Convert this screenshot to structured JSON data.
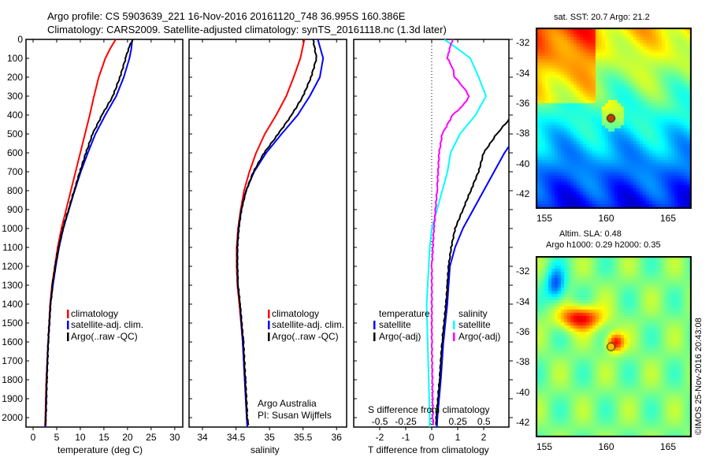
{
  "title_line1": "Argo profile: CS 5903639_221 16-Nov-2016 20161120_748 36.995S 160.386E",
  "title_line2": "Climatology: CARS2009. Satellite-adjusted climatology: synTS_20161118.nc (1.3d later)",
  "colors": {
    "clim": "#ff0000",
    "sat": "#0000ff",
    "argo": "#000000",
    "sat_s": "#00ffff",
    "argo_s": "#ff00ff"
  },
  "map1": {
    "title": "sat. SST: 20.7 Argo: 21.2",
    "lat_ticks": [
      "-32",
      "-34",
      "-36",
      "-38",
      "-40",
      "-42"
    ],
    "lon_ticks": [
      "155",
      "160",
      "165"
    ],
    "argo_lon": 160.386,
    "argo_lat": -36.995
  },
  "map2": {
    "title1": "Altim. SLA: 0.48",
    "title2": "Argo h1000: 0.29 h2000: 0.35",
    "lat_ticks": [
      "-32",
      "-34",
      "-36",
      "-38",
      "-40",
      "-42"
    ],
    "lon_ticks": [
      "155",
      "160",
      "165"
    ]
  },
  "credit": "©IMOS 25-Nov-2016 20:43:08",
  "chart_data": [
    {
      "type": "line",
      "xlabel": "temperature (deg C)",
      "ylabel": "depth",
      "xlim": [
        -1.5,
        31.7
      ],
      "ylim": [
        2050,
        0
      ],
      "xticks": [
        "0",
        "5",
        "10",
        "15",
        "20",
        "25",
        "30"
      ],
      "yticks": [
        "0",
        "100",
        "200",
        "300",
        "400",
        "500",
        "600",
        "700",
        "800",
        "900",
        "1000",
        "1100",
        "1200",
        "1300",
        "1400",
        "1500",
        "1600",
        "1700",
        "1800",
        "1900",
        "2000"
      ],
      "legend": [
        "climatology",
        "satellite-adj. clim.",
        "Argo(..raw -QC)"
      ],
      "series": [
        {
          "name": "climatology",
          "color": "#ff0000",
          "depth": [
            0,
            50,
            100,
            200,
            300,
            400,
            500,
            600,
            700,
            800,
            900,
            1000,
            1100,
            1200,
            1300,
            1400,
            1600,
            1800,
            2000,
            2050
          ],
          "values": [
            17.5,
            16.3,
            15.3,
            13.9,
            12.9,
            12,
            11,
            10,
            9,
            8,
            7,
            6,
            5.2,
            4.6,
            4,
            3.6,
            3.2,
            2.8,
            2.6,
            2.5
          ]
        },
        {
          "name": "satellite-adj. clim.",
          "color": "#0000ff",
          "depth": [
            0,
            50,
            100,
            200,
            300,
            400,
            500,
            600,
            700,
            800,
            900,
            1000,
            1100,
            1200,
            1300,
            1400,
            1600,
            1800,
            2000,
            2050
          ],
          "values": [
            21,
            20.8,
            20.4,
            19.2,
            17.6,
            15.3,
            13.2,
            11.6,
            10.1,
            8.8,
            7.6,
            6.4,
            5.5,
            4.8,
            4.2,
            3.7,
            3.2,
            2.9,
            2.7,
            2.6
          ]
        },
        {
          "name": "Argo(..raw -QC)",
          "color": "#000000",
          "depth": [
            0,
            50,
            100,
            200,
            300,
            400,
            500,
            600,
            700,
            800,
            900,
            1000,
            1100,
            1200,
            1300,
            1400,
            1600,
            1800,
            2000,
            2040
          ],
          "values": [
            21.1,
            20.2,
            19.6,
            18.4,
            16.9,
            14.6,
            12.6,
            11.2,
            9.9,
            8.7,
            7.5,
            6.3,
            5.4,
            4.7,
            4.1,
            3.7,
            3.2,
            2.9,
            2.7,
            2.6
          ]
        }
      ]
    },
    {
      "type": "line",
      "xlabel": "salinity",
      "xlim": [
        33.8,
        36.15
      ],
      "ylim": [
        2050,
        0
      ],
      "xticks": [
        "34",
        "34.5",
        "35",
        "35.5",
        "36"
      ],
      "legend": [
        "climatology",
        "satellite-adj. clim.",
        "Argo(..raw -QC)"
      ],
      "annotation": [
        "Argo Australia",
        "PI: Susan Wijffels"
      ],
      "series": [
        {
          "name": "climatology",
          "color": "#ff0000",
          "depth": [
            0,
            100,
            200,
            300,
            400,
            500,
            600,
            700,
            800,
            900,
            1000,
            1100,
            1200,
            1300,
            1400,
            1600,
            1800,
            2000,
            2050
          ],
          "values": [
            35.52,
            35.46,
            35.36,
            35.25,
            35.1,
            34.93,
            34.8,
            34.7,
            34.62,
            34.57,
            34.53,
            34.51,
            34.51,
            34.52,
            34.55,
            34.6,
            34.63,
            34.66,
            34.67
          ]
        },
        {
          "name": "satellite-adj. clim.",
          "color": "#0000ff",
          "depth": [
            0,
            100,
            200,
            300,
            400,
            500,
            600,
            700,
            800,
            900,
            1000,
            1100,
            1200,
            1300,
            1400,
            1600,
            1800,
            2000,
            2050
          ],
          "values": [
            35.72,
            35.8,
            35.75,
            35.6,
            35.42,
            35.18,
            34.95,
            34.77,
            34.65,
            34.58,
            34.54,
            34.52,
            34.52,
            34.53,
            34.56,
            34.6,
            34.63,
            34.66,
            34.67
          ]
        },
        {
          "name": "Argo(..raw -QC)",
          "color": "#000000",
          "depth": [
            0,
            100,
            200,
            300,
            400,
            500,
            600,
            700,
            800,
            900,
            1000,
            1100,
            1200,
            1300,
            1400,
            1600,
            1800,
            2000,
            2040
          ],
          "values": [
            35.65,
            35.7,
            35.62,
            35.5,
            35.33,
            35.13,
            34.92,
            34.76,
            34.65,
            34.58,
            34.54,
            34.52,
            34.52,
            34.53,
            34.56,
            34.61,
            34.64,
            34.67,
            34.68
          ]
        }
      ]
    },
    {
      "type": "line",
      "xlabel": "T difference from climatology",
      "x2label": "S difference from climatology",
      "xlim": [
        -3,
        2.97
      ],
      "x2lim": [
        -0.75,
        0.74
      ],
      "ylim": [
        2050,
        0
      ],
      "xticks": [
        "-2",
        "-1",
        "0",
        "1",
        "2"
      ],
      "x2ticks": [
        "-0.5",
        "-0.25",
        "0",
        "0.25",
        "0.5"
      ],
      "legend_t_title": "temperature",
      "legend_s_title": "salinity",
      "legend": [
        "satellite",
        "Argo(-adj)",
        "satellite",
        "Argo(-adj)"
      ],
      "series": [
        {
          "name": "T satellite",
          "axis": "T",
          "color": "#0000ff",
          "depth": [
            560,
            600,
            700,
            800,
            900,
            1000,
            1100,
            1200,
            1300,
            1400,
            1600,
            1800,
            2000,
            2050
          ],
          "values": [
            3,
            2.8,
            2.4,
            2,
            1.6,
            1.2,
            0.9,
            0.7,
            0.65,
            0.6,
            0.45,
            0.35,
            0.22,
            0.2
          ]
        },
        {
          "name": "T Argo(-adj)",
          "axis": "T",
          "color": "#000000",
          "depth": [
            420,
            500,
            600,
            700,
            800,
            900,
            1000,
            1100,
            1200,
            1300,
            1400,
            1600,
            1800,
            2000,
            2040
          ],
          "values": [
            3,
            2.5,
            2,
            1.8,
            1.5,
            1.2,
            0.9,
            0.75,
            0.65,
            0.6,
            0.55,
            0.4,
            0.3,
            0.18,
            0.15
          ]
        },
        {
          "name": "S satellite",
          "axis": "S",
          "color": "#00ffff",
          "depth": [
            0,
            50,
            100,
            200,
            300,
            400,
            500,
            600,
            700,
            800,
            900,
            1000,
            1100,
            1200,
            1400,
            1600,
            2000,
            2050
          ],
          "values": [
            0.12,
            0.25,
            0.37,
            0.45,
            0.52,
            0.42,
            0.27,
            0.18,
            0.15,
            0.1,
            0.05,
            0.0,
            -0.02,
            -0.03,
            -0.05,
            -0.04,
            -0.02,
            -0.02
          ]
        },
        {
          "name": "S Argo(-adj)",
          "axis": "S",
          "color": "#ff00ff",
          "depth": [
            0,
            50,
            100,
            150,
            200,
            250,
            300,
            350,
            400,
            500,
            600,
            800,
            1000,
            1200,
            1600,
            2000,
            2040
          ],
          "values": [
            0.2,
            0.17,
            0.15,
            0.2,
            0.22,
            0.3,
            0.36,
            0.3,
            0.2,
            0.1,
            0.07,
            0.05,
            0.02,
            0.0,
            0.0,
            0.01,
            0.01
          ]
        }
      ]
    }
  ]
}
